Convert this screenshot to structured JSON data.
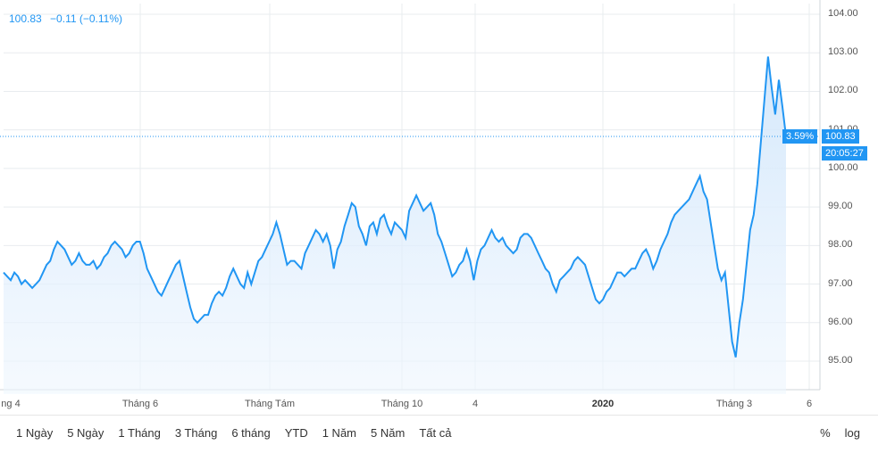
{
  "header": {
    "price": "100.83",
    "change": "−0.11 (−0.11%)"
  },
  "badges": {
    "percent": "3.59%",
    "price": "100.83",
    "time": "20:05:27"
  },
  "colors": {
    "line": "#2196f3",
    "fill": "#e3f0fc",
    "grid": "#e8ecef"
  },
  "chart_data": {
    "type": "area",
    "y_ticks": [
      "104.00",
      "103.00",
      "102.00",
      "101.00",
      "100.00",
      "99.00",
      "98.00",
      "97.00",
      "96.00",
      "95.00"
    ],
    "ylim": [
      94.2,
      104.5
    ],
    "x_ticks": [
      "ng 4",
      "Tháng 6",
      "Tháng Tám",
      "Tháng 10",
      "4",
      "2020",
      "Tháng 3",
      "6"
    ],
    "x_tick_bold": "2020",
    "current_price": 100.83,
    "values": [
      97.3,
      97.2,
      97.1,
      97.3,
      97.2,
      97.0,
      97.1,
      97.0,
      96.9,
      97.0,
      97.1,
      97.3,
      97.5,
      97.6,
      97.9,
      98.1,
      98.0,
      97.9,
      97.7,
      97.5,
      97.6,
      97.8,
      97.6,
      97.5,
      97.5,
      97.6,
      97.4,
      97.5,
      97.7,
      97.8,
      98.0,
      98.1,
      98.0,
      97.9,
      97.7,
      97.8,
      98.0,
      98.1,
      98.1,
      97.8,
      97.4,
      97.2,
      97.0,
      96.8,
      96.7,
      96.9,
      97.1,
      97.3,
      97.5,
      97.6,
      97.2,
      96.8,
      96.4,
      96.1,
      96.0,
      96.1,
      96.2,
      96.2,
      96.5,
      96.7,
      96.8,
      96.7,
      96.9,
      97.2,
      97.4,
      97.2,
      97.0,
      96.9,
      97.3,
      97.0,
      97.3,
      97.6,
      97.7,
      97.9,
      98.1,
      98.3,
      98.6,
      98.3,
      97.9,
      97.5,
      97.6,
      97.6,
      97.5,
      97.4,
      97.8,
      98.0,
      98.2,
      98.4,
      98.3,
      98.1,
      98.3,
      98.0,
      97.4,
      97.9,
      98.1,
      98.5,
      98.8,
      99.1,
      99.0,
      98.5,
      98.3,
      98.0,
      98.5,
      98.6,
      98.3,
      98.7,
      98.8,
      98.5,
      98.3,
      98.6,
      98.5,
      98.4,
      98.2,
      98.9,
      99.1,
      99.3,
      99.1,
      98.9,
      99.0,
      99.1,
      98.8,
      98.3,
      98.1,
      97.8,
      97.5,
      97.2,
      97.3,
      97.5,
      97.6,
      97.9,
      97.6,
      97.1,
      97.6,
      97.9,
      98.0,
      98.2,
      98.4,
      98.2,
      98.1,
      98.2,
      98.0,
      97.9,
      97.8,
      97.9,
      98.2,
      98.3,
      98.3,
      98.2,
      98.0,
      97.8,
      97.6,
      97.4,
      97.3,
      97.0,
      96.8,
      97.1,
      97.2,
      97.3,
      97.4,
      97.6,
      97.7,
      97.6,
      97.5,
      97.2,
      96.9,
      96.6,
      96.5,
      96.6,
      96.8,
      96.9,
      97.1,
      97.3,
      97.3,
      97.2,
      97.3,
      97.4,
      97.4,
      97.6,
      97.8,
      97.9,
      97.7,
      97.4,
      97.6,
      97.9,
      98.1,
      98.3,
      98.6,
      98.8,
      98.9,
      99.0,
      99.1,
      99.2,
      99.4,
      99.6,
      99.8,
      99.4,
      99.2,
      98.6,
      98.0,
      97.4,
      97.1,
      97.3,
      96.4,
      95.5,
      95.1,
      96.0,
      96.6,
      97.5,
      98.4,
      98.8,
      99.6,
      100.7,
      101.8,
      102.9,
      102.1,
      101.4,
      102.3,
      101.6,
      100.83
    ]
  },
  "range_buttons": [
    "1 Ngày",
    "5 Ngày",
    "1 Tháng",
    "3 Tháng",
    "6 tháng",
    "YTD",
    "1 Năm",
    "5 Năm",
    "Tất cả"
  ],
  "right_buttons": [
    "%",
    "log"
  ]
}
